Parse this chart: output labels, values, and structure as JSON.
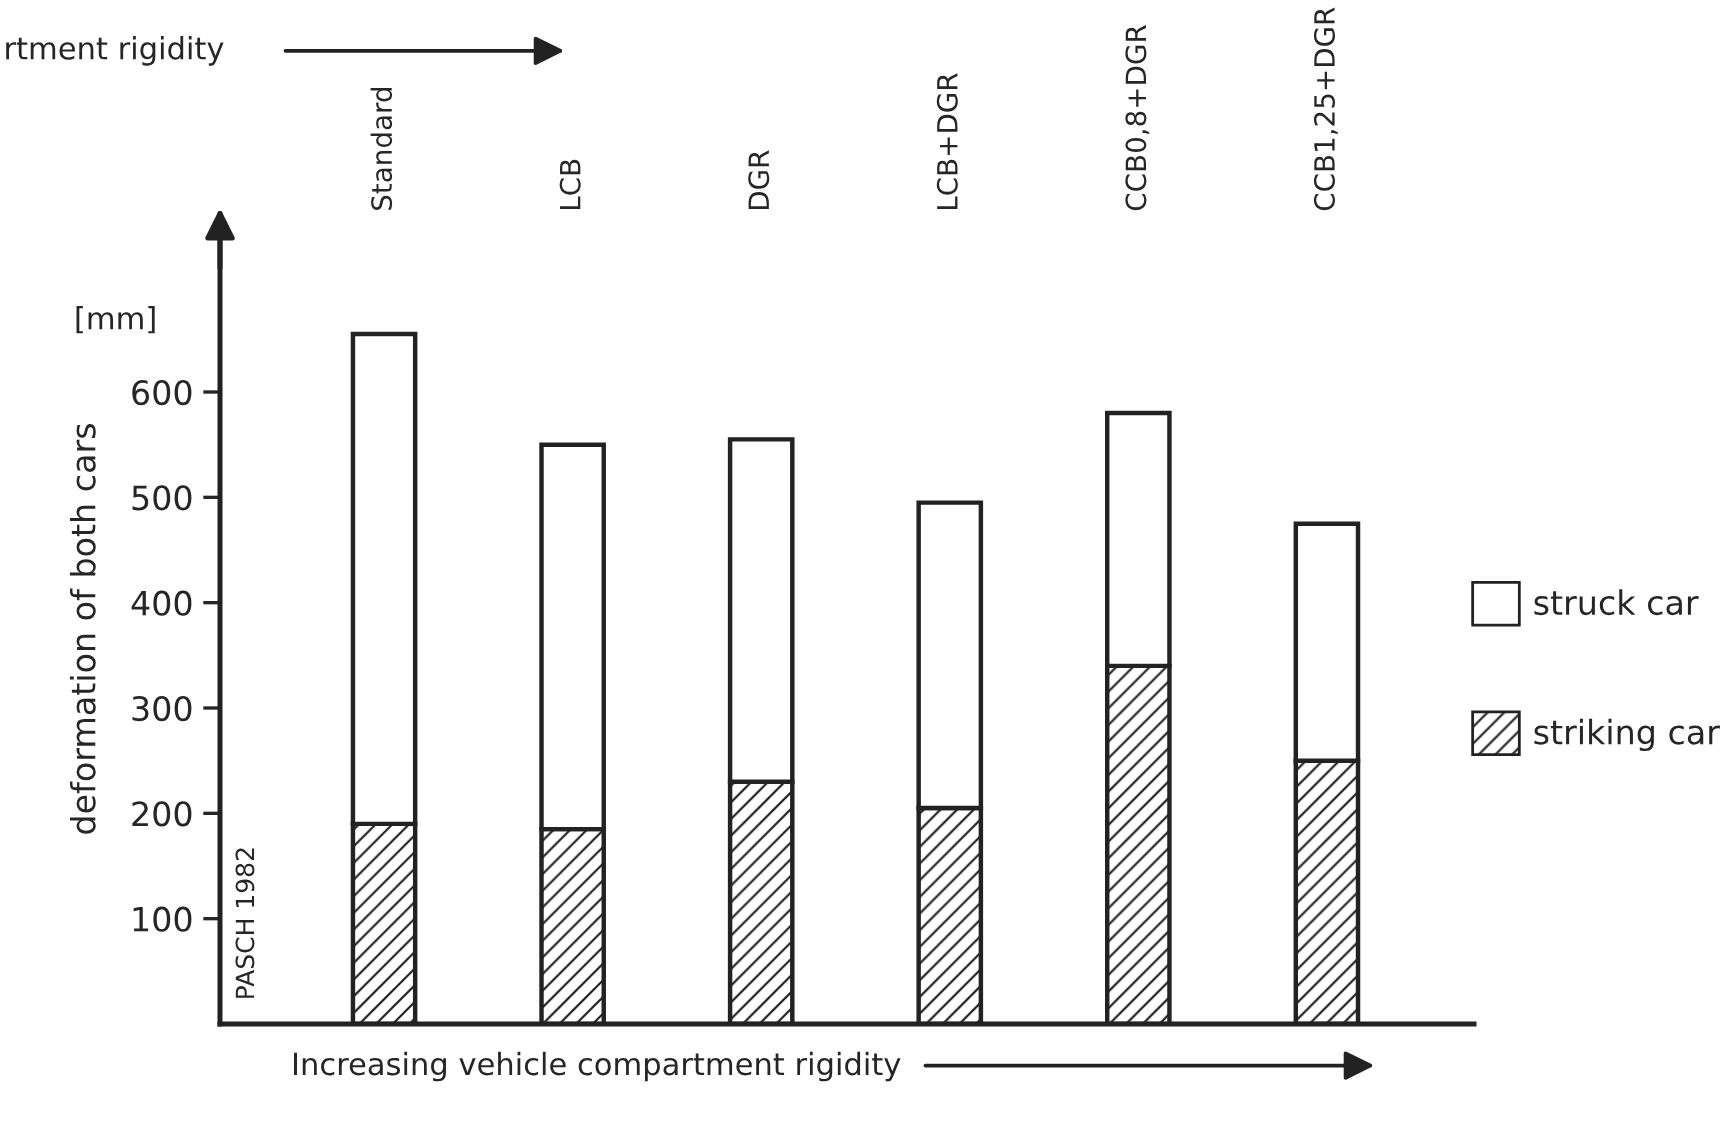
{
  "chart_data": {
    "type": "bar",
    "stacked": true,
    "ylabel": "deformation of both cars",
    "xlabel": "Increasing vehicle compartment rigidity",
    "categories": [
      "Standard",
      "LCB",
      "DGR",
      "LCB+DGR",
      "CCB0,8+DGR",
      "CCB1,25+DGR"
    ],
    "series": [
      {
        "name": "striking car",
        "color": "#222222",
        "values": [
          190,
          185,
          230,
          205,
          340,
          250
        ]
      },
      {
        "name": "struck car",
        "color": "#ffffff",
        "values": [
          465,
          365,
          325,
          290,
          240,
          225
        ]
      }
    ],
    "ylim": [
      0,
      750
    ],
    "yticks": [
      100,
      200,
      300,
      400,
      500,
      600
    ],
    "annotations": [
      "[mm]",
      "PASCH 1982",
      "rtment rigidity"
    ],
    "legend": "right",
    "grid": false
  }
}
